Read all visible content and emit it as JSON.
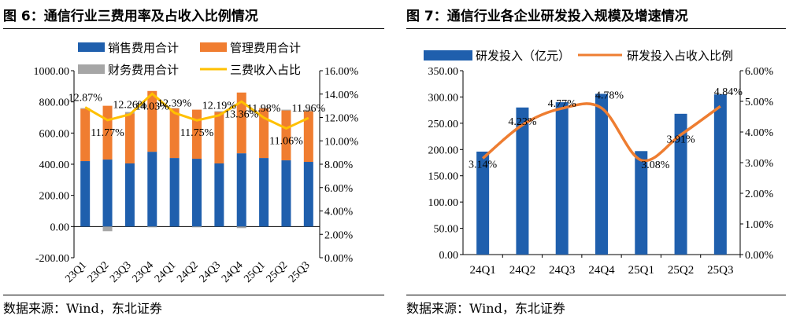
{
  "colors": {
    "blue": "#1F5FAD",
    "orange": "#F07D30",
    "gray": "#A6A6A6",
    "yellow": "#FFC000",
    "orange_line": "#EE7D31"
  },
  "fig6": {
    "title": "图 6：通信行业三费用率及占收入比例情况",
    "source": "数据来源：Wind，东北证券",
    "chart_data": {
      "type": "bar",
      "stacked": true,
      "categories": [
        "23Q1",
        "23Q2",
        "23Q3",
        "23Q4",
        "24Q1",
        "24Q2",
        "24Q3",
        "24Q4",
        "25Q1",
        "25Q2",
        "25Q3"
      ],
      "series": [
        {
          "name": "销售费用合计",
          "values": [
            420,
            430,
            405,
            480,
            440,
            435,
            405,
            470,
            440,
            425,
            415
          ]
        },
        {
          "name": "管理费用合计",
          "values": [
            335,
            345,
            320,
            390,
            320,
            315,
            330,
            390,
            320,
            320,
            325
          ]
        },
        {
          "name": "财务费用合计",
          "values": [
            5,
            -30,
            10,
            -5,
            0,
            -5,
            5,
            -10,
            0,
            5,
            10
          ]
        }
      ],
      "line": {
        "name": "三费收入占比",
        "values": [
          12.87,
          11.77,
          12.26,
          14.03,
          12.39,
          11.75,
          12.19,
          13.36,
          11.98,
          11.06,
          11.96
        ]
      },
      "value_labels": [
        "12.87%",
        "11.77%",
        "12.26%",
        "14.03%",
        "12.39%",
        "11.75%",
        "12.19%",
        "13.36%",
        "11.98%",
        "11.06%",
        "11.96%"
      ],
      "ylim_left": [
        -200,
        1000
      ],
      "ylim_right": [
        0,
        16
      ],
      "left_ticks": [
        "1000.00",
        "800.00",
        "600.00",
        "400.00",
        "200.00",
        "0.00",
        "-200.00"
      ],
      "right_ticks": [
        "16.00%",
        "14.00%",
        "12.00%",
        "10.00%",
        "8.00%",
        "6.00%",
        "4.00%",
        "2.00%",
        "0.00%"
      ],
      "legend": [
        "销售费用合计",
        "管理费用合计",
        "财务费用合计",
        "三费收入占比"
      ]
    }
  },
  "fig7": {
    "title": "图 7：通信行业各企业研发投入规模及增速情况",
    "source": "数据来源：Wind，东北证券",
    "chart_data": {
      "type": "bar",
      "categories": [
        "24Q1",
        "24Q2",
        "24Q3",
        "24Q4",
        "25Q1",
        "25Q2",
        "25Q3"
      ],
      "series": [
        {
          "name": "研发投入（亿元）",
          "values": [
            196,
            280,
            290,
            306,
            197,
            268,
            305
          ]
        }
      ],
      "line": {
        "name": "研发投入占收入比例",
        "values": [
          3.14,
          4.23,
          4.77,
          4.78,
          3.08,
          3.91,
          4.84
        ]
      },
      "value_labels": [
        "3.14%",
        "4.23%",
        "4.77%",
        "4.78%",
        "3.08%",
        "3.91%",
        "4.84%"
      ],
      "ylim_left": [
        0,
        350
      ],
      "ylim_right": [
        0,
        6
      ],
      "left_ticks": [
        "350.00",
        "300.00",
        "250.00",
        "200.00",
        "150.00",
        "100.00",
        "50.00",
        "0.00"
      ],
      "right_ticks": [
        "6.00%",
        "5.00%",
        "4.00%",
        "3.00%",
        "2.00%",
        "1.00%",
        "0.00%"
      ],
      "legend": [
        "研发投入（亿元）",
        "研发投入占收入比例"
      ]
    }
  }
}
